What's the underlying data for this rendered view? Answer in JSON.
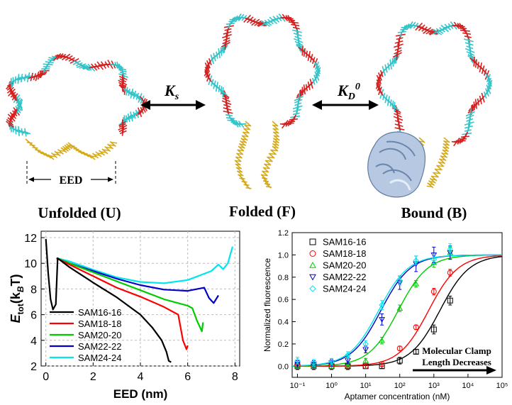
{
  "states": {
    "unfolded": "Unfolded (U)",
    "folded": "Folded (F)",
    "bound": "Bound (B)"
  },
  "equilibria": {
    "ks_main": "K",
    "ks_sub": "s",
    "kd_main": "K",
    "kd_sub": "D",
    "kd_sup": "0"
  },
  "eed_marker": "EED",
  "colors": {
    "dna_strand_1": "#d42020",
    "dna_strand_2": "#33c4c9",
    "clamp_gold": "#d4aa1c",
    "protein": "#aec4e0"
  },
  "chart_data": [
    {
      "type": "line",
      "xlabel": "EED (nm)",
      "ylabel": "E_tot (k_BT)",
      "ylabel_main": "E",
      "ylabel_sub": "tot",
      "ylabel_paren": "(k",
      "ylabel_sub2": "B",
      "ylabel_end": "T)",
      "xlim": [
        -0.2,
        8.2
      ],
      "ylim": [
        2,
        12.5
      ],
      "xticks": [
        0,
        2,
        4,
        6,
        8
      ],
      "yticks": [
        2,
        4,
        6,
        8,
        10,
        12
      ],
      "grid": true,
      "legend_position": "bottom-left",
      "series": [
        {
          "name": "SAM16-16",
          "color": "#000000",
          "x": [
            0.0,
            0.1,
            0.2,
            0.3,
            0.42,
            0.5,
            1.0,
            2.0,
            3.0,
            4.0,
            4.5,
            4.9,
            5.1,
            5.2,
            5.3
          ],
          "y": [
            11.9,
            9.2,
            7.2,
            6.4,
            6.8,
            10.4,
            9.7,
            8.5,
            7.35,
            6.0,
            5.0,
            4.0,
            3.1,
            2.4,
            2.3
          ]
        },
        {
          "name": "SAM18-18",
          "color": "#ff0000",
          "x": [
            0.45,
            1.0,
            2.0,
            3.0,
            4.0,
            5.0,
            5.6,
            5.8,
            5.95,
            6.0
          ],
          "y": [
            10.4,
            9.9,
            9.0,
            8.1,
            7.4,
            6.6,
            6.0,
            4.0,
            3.3,
            3.6
          ]
        },
        {
          "name": "SAM20-20",
          "color": "#00cc00",
          "x": [
            0.45,
            1.0,
            2.0,
            3.0,
            4.0,
            5.0,
            6.0,
            6.2,
            6.4,
            6.6,
            6.65
          ],
          "y": [
            10.4,
            10.0,
            9.3,
            8.6,
            7.9,
            7.2,
            6.7,
            6.5,
            5.5,
            4.7,
            5.4
          ]
        },
        {
          "name": "SAM22-22",
          "color": "#0000cc",
          "x": [
            0.45,
            1.0,
            2.0,
            3.0,
            4.0,
            5.0,
            6.0,
            6.7,
            6.9,
            7.1,
            7.3
          ],
          "y": [
            10.4,
            10.0,
            9.4,
            8.8,
            8.3,
            7.95,
            7.85,
            8.1,
            7.3,
            6.9,
            7.5
          ]
        },
        {
          "name": "SAM24-24",
          "color": "#00e5ee",
          "x": [
            0.45,
            1.0,
            2.0,
            3.0,
            4.0,
            5.0,
            6.0,
            7.0,
            7.3,
            7.5,
            7.7,
            7.9
          ],
          "y": [
            10.4,
            10.15,
            9.5,
            8.9,
            8.55,
            8.45,
            8.7,
            9.4,
            9.9,
            9.55,
            10.0,
            11.3
          ]
        }
      ]
    },
    {
      "type": "scatter",
      "xlabel": "Aptamer concentration (nM)",
      "ylabel": "Normalized fluorescence",
      "x_scale": "log",
      "xlim": [
        0.07,
        100000
      ],
      "ylim": [
        -0.1,
        1.2
      ],
      "xtick_labels": [
        "10⁻¹",
        "10⁰",
        "10¹",
        "10²",
        "10³",
        "10⁴",
        "10⁵"
      ],
      "xtick_values": [
        0.1,
        1,
        10,
        100,
        1000,
        10000,
        100000
      ],
      "yticks": [
        0.0,
        0.2,
        0.4,
        0.6,
        0.8,
        1.0,
        1.2
      ],
      "ytick_labels": [
        "0.0",
        "0.2",
        "0.4",
        "0.6",
        "0.8",
        "1.0",
        "1.2"
      ],
      "grid": false,
      "legend_position": "top-left",
      "annotation": {
        "line1": "Molecular Clamp",
        "line2": "Length Decreases"
      },
      "series": [
        {
          "name": "SAM16-16",
          "marker": "square",
          "color": "#000000",
          "fit_kd": 1500,
          "x": [
            0.1,
            0.3,
            1,
            3,
            10,
            30,
            100,
            300,
            1000,
            3000
          ],
          "y": [
            0.0,
            0.0,
            0.0,
            0.0,
            0.0,
            0.0,
            0.05,
            0.13,
            0.33,
            0.59
          ],
          "err": [
            0.03,
            0.03,
            0.03,
            0.03,
            0.02,
            0.02,
            0.03,
            0.02,
            0.04,
            0.04
          ]
        },
        {
          "name": "SAM18-18",
          "marker": "circle",
          "color": "#ff0000",
          "fit_kd": 700,
          "x": [
            0.1,
            0.3,
            1,
            3,
            10,
            30,
            100,
            300,
            1000,
            3000
          ],
          "y": [
            0.0,
            0.0,
            0.0,
            0.0,
            0.0,
            0.02,
            0.16,
            0.35,
            0.67,
            0.84
          ],
          "err": [
            0.02,
            0.02,
            0.02,
            0.02,
            0.02,
            0.02,
            0.02,
            0.02,
            0.03,
            0.03
          ]
        },
        {
          "name": "SAM20-20",
          "marker": "triangle-up",
          "color": "#00cc00",
          "fit_kd": 90,
          "x": [
            0.1,
            0.3,
            1,
            3,
            10,
            30,
            100,
            300,
            1000,
            3000
          ],
          "y": [
            0.0,
            0.0,
            0.0,
            0.01,
            0.05,
            0.23,
            0.52,
            0.74,
            0.93,
            1.02
          ],
          "err": [
            0.02,
            0.02,
            0.02,
            0.02,
            0.02,
            0.03,
            0.03,
            0.03,
            0.04,
            0.05
          ]
        },
        {
          "name": "SAM22-22",
          "marker": "triangle-down",
          "color": "#0000cc",
          "fit_kd": 28,
          "x": [
            0.1,
            0.3,
            1,
            3,
            10,
            30,
            100,
            300,
            1000,
            3000
          ],
          "y": [
            0.02,
            0.02,
            0.03,
            0.05,
            0.15,
            0.42,
            0.75,
            0.92,
            1.0,
            1.02
          ],
          "err": [
            0.03,
            0.03,
            0.03,
            0.03,
            0.03,
            0.05,
            0.06,
            0.07,
            0.07,
            0.06
          ]
        },
        {
          "name": "SAM24-24",
          "marker": "diamond",
          "color": "#00e5ee",
          "fit_kd": 24,
          "x": [
            0.1,
            0.3,
            1,
            3,
            10,
            30,
            100,
            300,
            1000,
            3000
          ],
          "y": [
            0.05,
            0.03,
            0.04,
            0.1,
            0.2,
            0.55,
            0.77,
            0.95,
            0.96,
            1.05
          ],
          "err": [
            0.03,
            0.03,
            0.03,
            0.03,
            0.03,
            0.04,
            0.04,
            0.04,
            0.04,
            0.05
          ]
        }
      ]
    }
  ]
}
